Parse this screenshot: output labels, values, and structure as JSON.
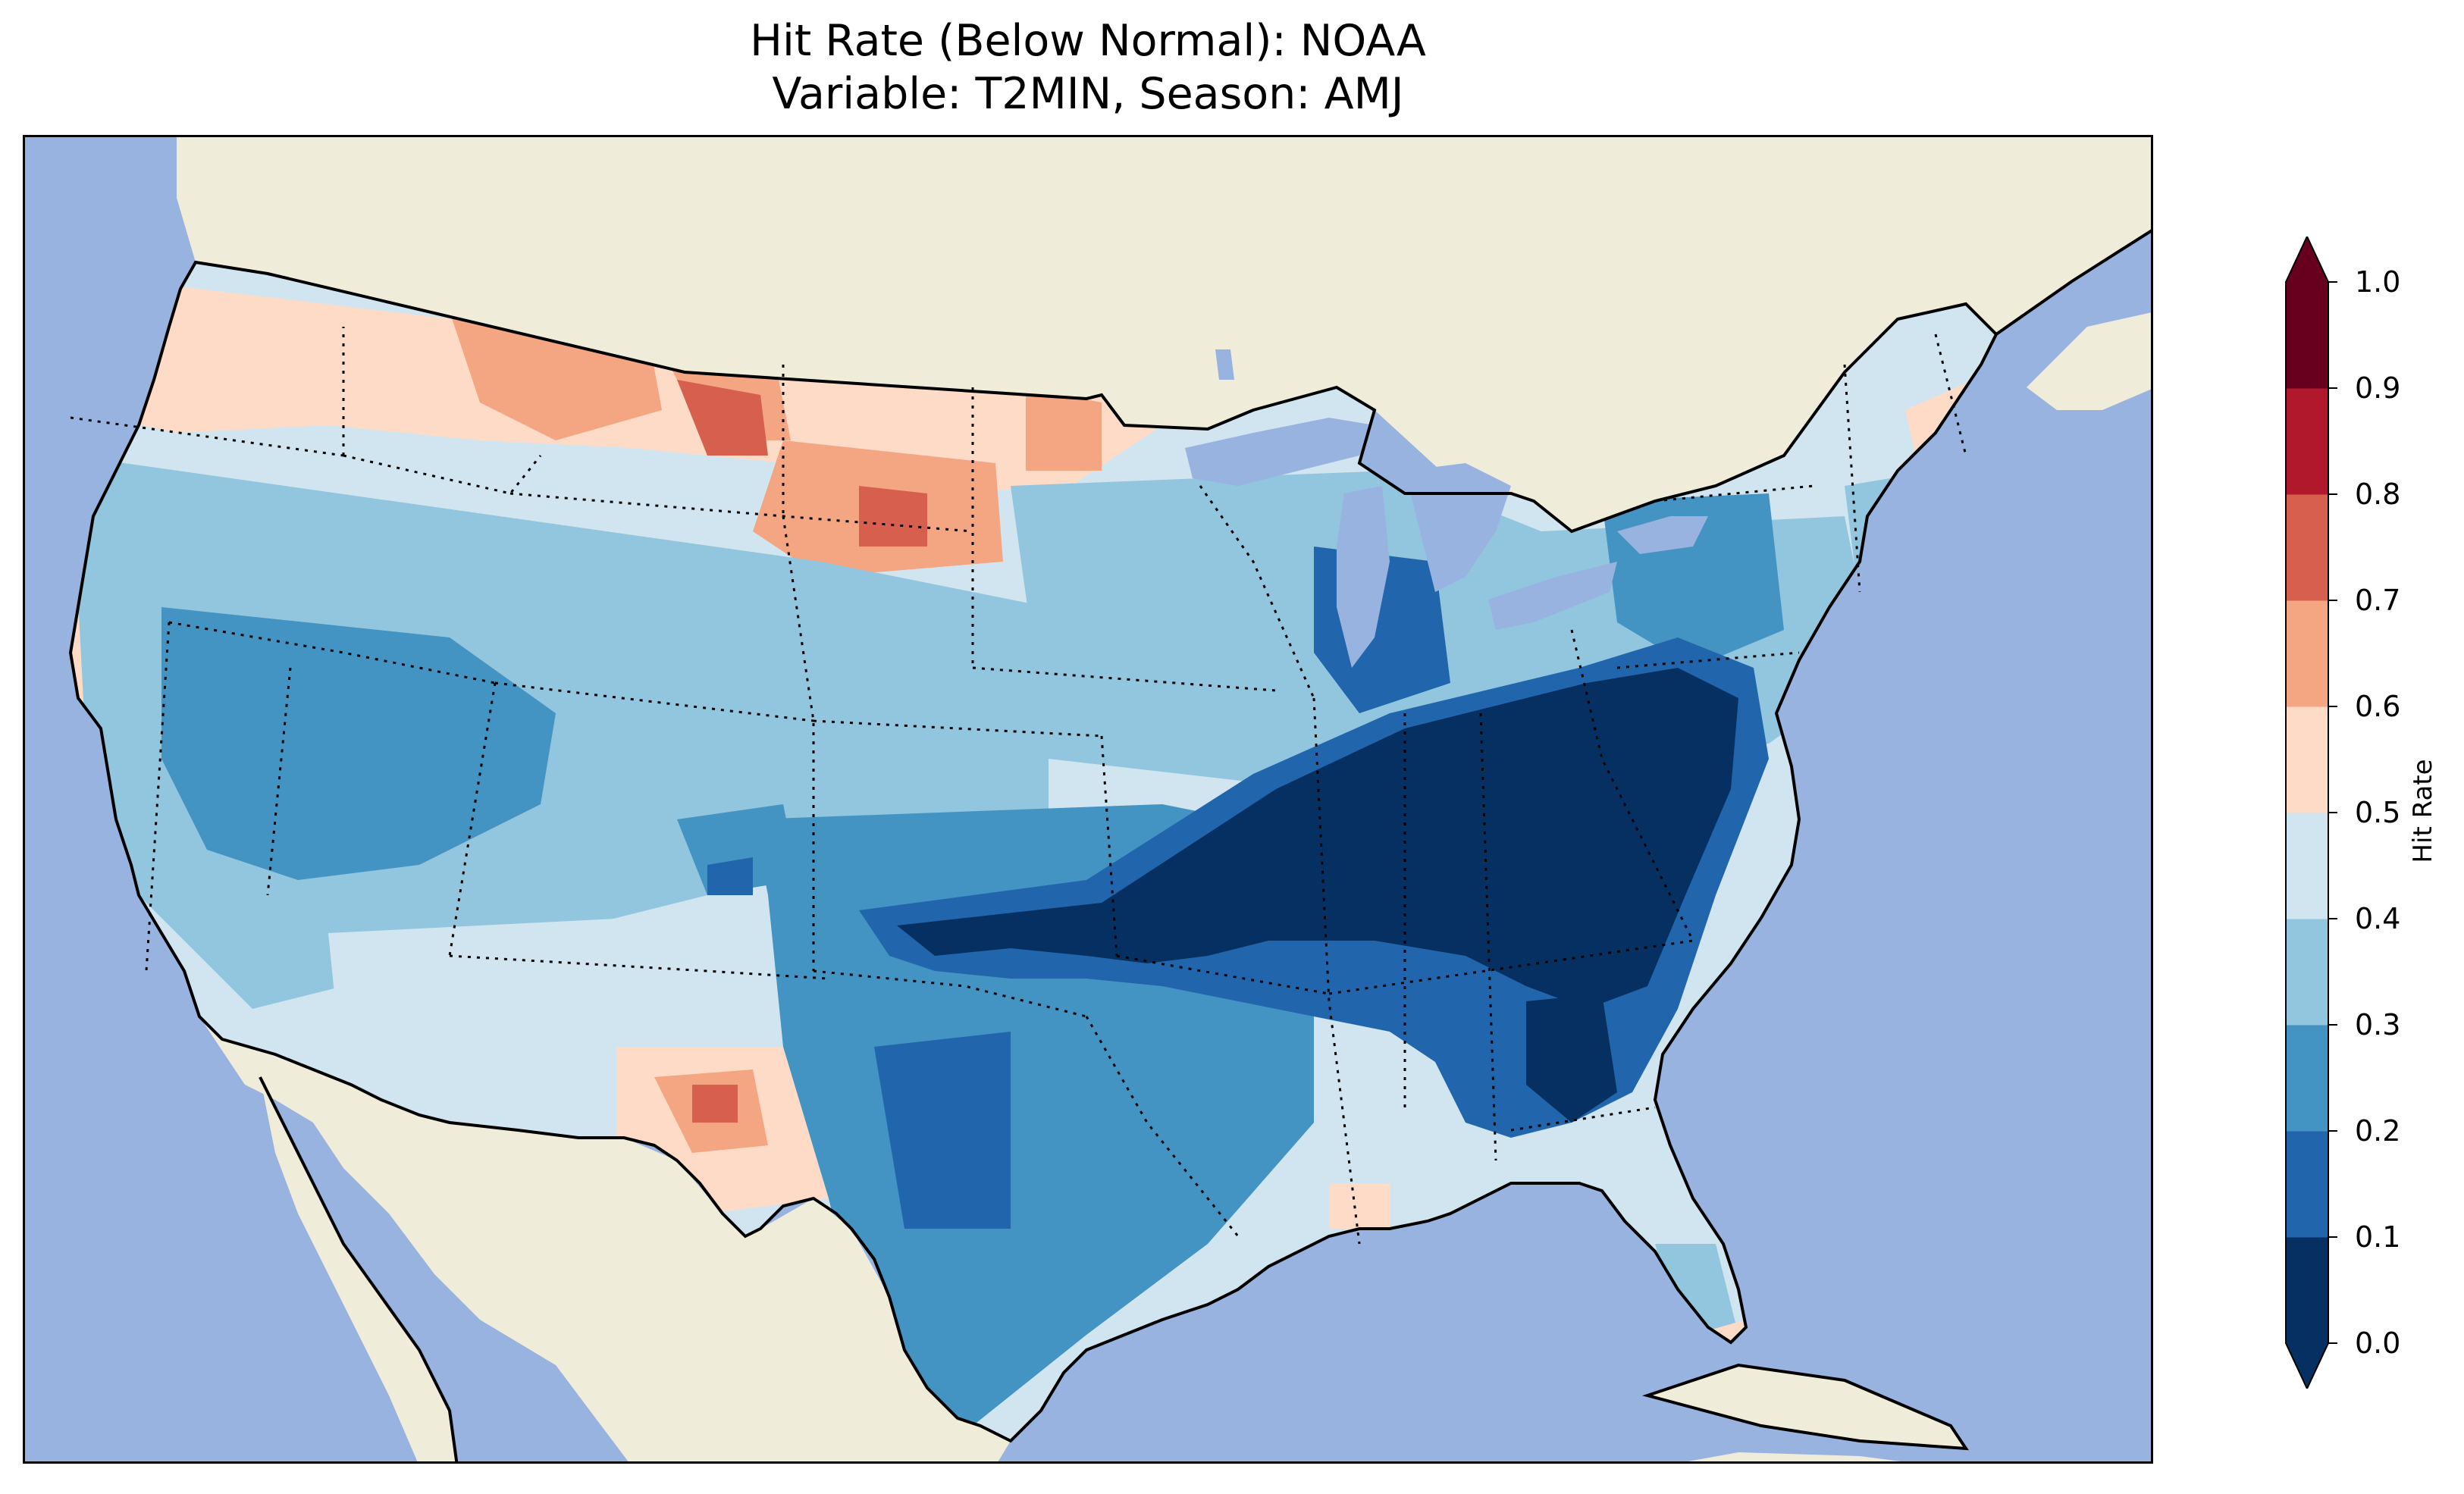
{
  "title": {
    "line1": "Hit Rate (Below Normal): NOAA",
    "line2": "Variable: T2MIN, Season: AMJ"
  },
  "colorbar": {
    "label": "Hit Rate",
    "ticks": [
      "0.0",
      "0.1",
      "0.2",
      "0.3",
      "0.4",
      "0.5",
      "0.6",
      "0.7",
      "0.8",
      "0.9",
      "1.0"
    ],
    "colors": [
      "#053061",
      "#2166ac",
      "#4393c3",
      "#92c5de",
      "#d1e5f0",
      "#fddbc7",
      "#f4a582",
      "#d6604d",
      "#b2182b",
      "#67001f"
    ],
    "extend": "both"
  },
  "map": {
    "projection": "Lambert conformal",
    "region": "Contiguous United States",
    "ocean_color": "#98b3df",
    "land_color": "#efedda",
    "lake_color": "#98b3df"
  }
}
